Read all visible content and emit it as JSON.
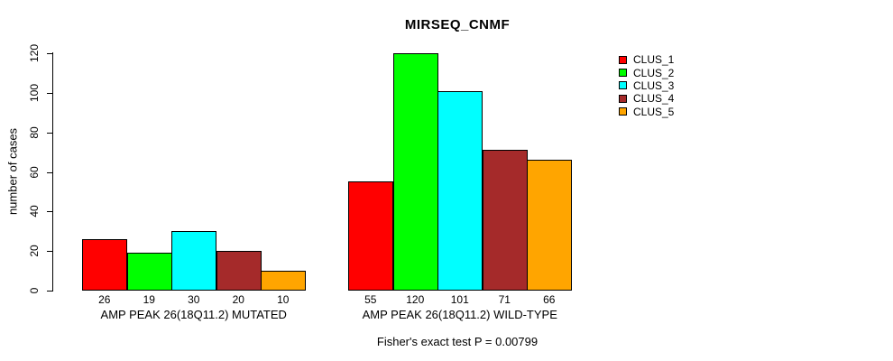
{
  "chart_data": {
    "type": "bar",
    "title": "MIRSEQ_CNMF",
    "ylabel": "number of cases",
    "xlabel": "",
    "ylim": [
      0,
      120
    ],
    "yticks": [
      0,
      20,
      40,
      60,
      80,
      100,
      120
    ],
    "grid": false,
    "legend_position": "top-right",
    "categories": [
      "AMP PEAK 26(18Q11.2) MUTATED",
      "AMP PEAK 26(18Q11.2) WILD-TYPE"
    ],
    "series": [
      {
        "name": "CLUS_1",
        "color": "#ff0000",
        "values": [
          26,
          55
        ]
      },
      {
        "name": "CLUS_2",
        "color": "#00ff00",
        "values": [
          19,
          120
        ]
      },
      {
        "name": "CLUS_3",
        "color": "#00ffff",
        "values": [
          30,
          101
        ]
      },
      {
        "name": "CLUS_4",
        "color": "#a52a2a",
        "values": [
          20,
          71
        ]
      },
      {
        "name": "CLUS_5",
        "color": "#ffa500",
        "values": [
          10,
          66
        ]
      }
    ],
    "bar_labels_shown": true,
    "annotation": "Fisher's exact test P = 0.00799"
  },
  "text_color": "#000000",
  "background_color": "#ffffff"
}
